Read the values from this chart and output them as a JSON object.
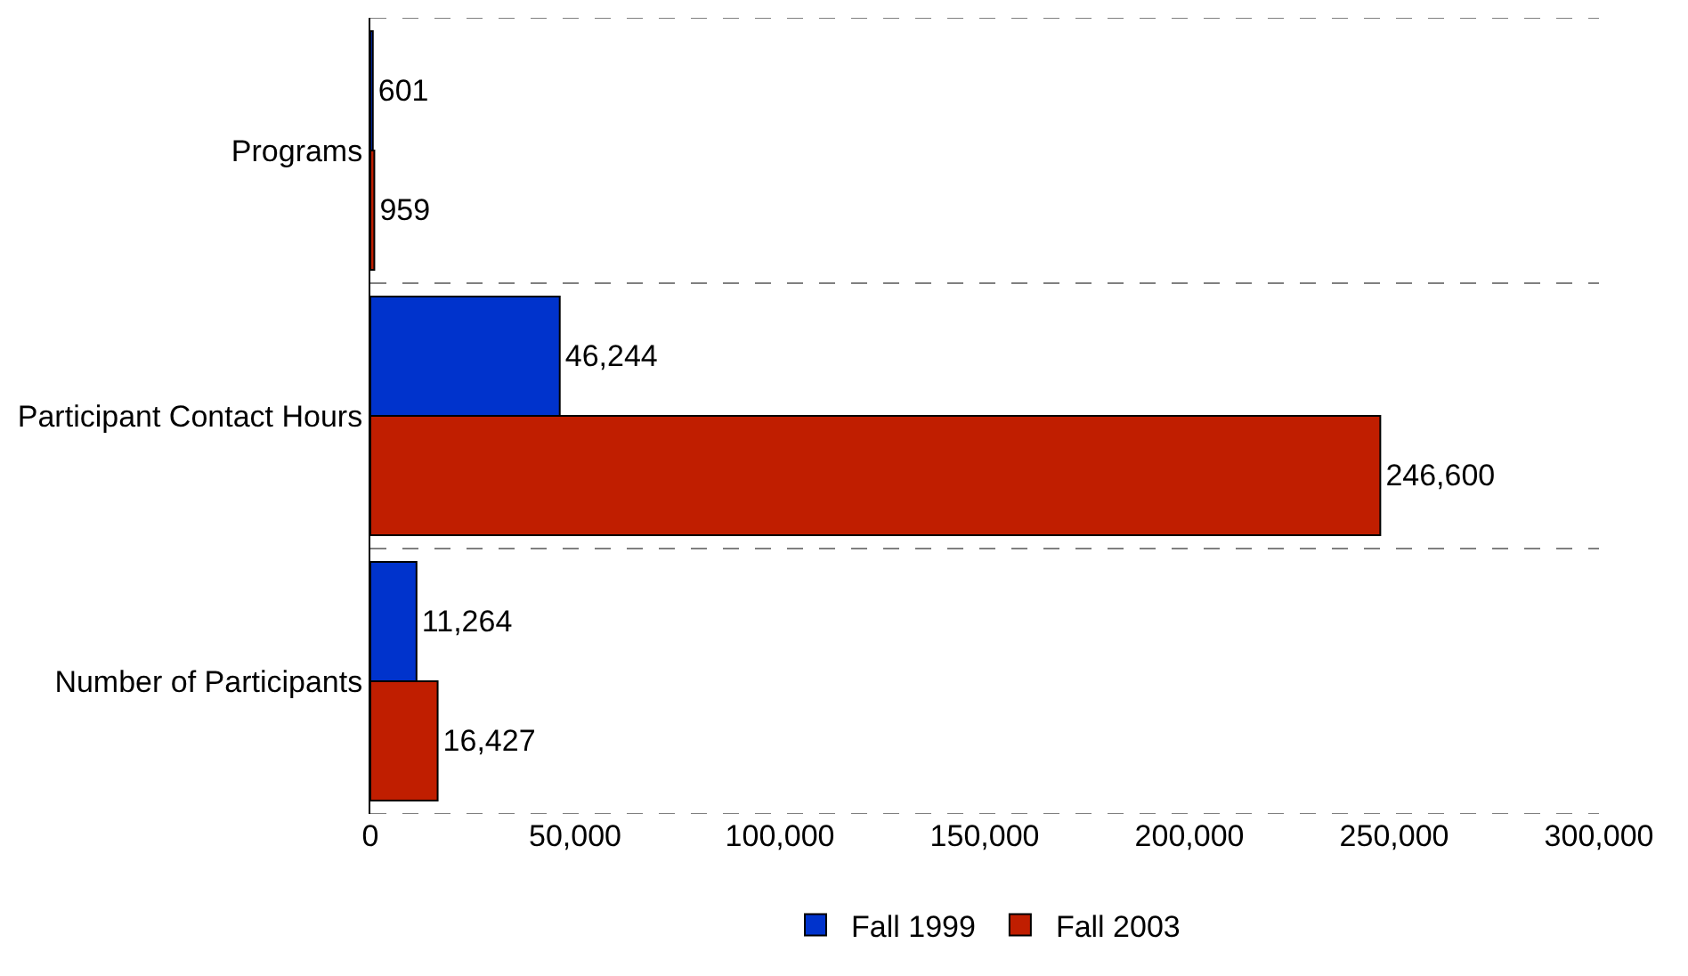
{
  "chart_data": {
    "type": "bar",
    "orientation": "horizontal",
    "categories": [
      "Programs",
      "Participant Contact Hours",
      "Number of Participants"
    ],
    "series": [
      {
        "name": "Fall 1999",
        "color": "#0033cc",
        "values": [
          601,
          46244,
          11264
        ],
        "value_labels": [
          "601",
          "46,244",
          "11,264"
        ]
      },
      {
        "name": "Fall 2003",
        "color": "#c01e00",
        "values": [
          959,
          246600,
          16427
        ],
        "value_labels": [
          "959",
          "246,600",
          "16,427"
        ]
      }
    ],
    "xlim": [
      0,
      300000
    ],
    "xticks": [
      0,
      {
        "value": 50000,
        "label": "50,000"
      },
      {
        "value": 100000,
        "label": "100,000"
      },
      {
        "value": 150000,
        "label": "150,000"
      },
      {
        "value": 200000,
        "label": "200,000"
      },
      {
        "value": 250000,
        "label": "250,000"
      },
      {
        "value": 300000,
        "label": "300,000"
      }
    ],
    "grid": "y",
    "legend": "bottom"
  }
}
